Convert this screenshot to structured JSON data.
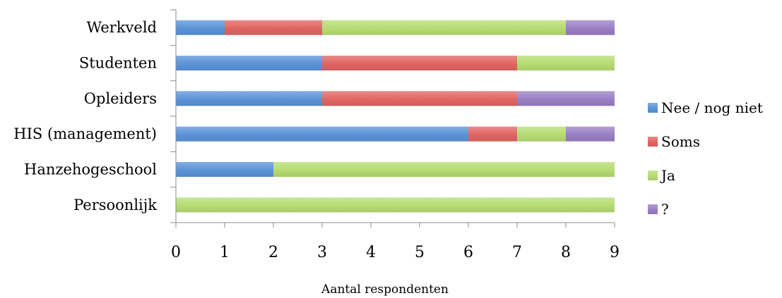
{
  "chart_data": {
    "type": "bar",
    "orientation": "horizontal",
    "stacked": true,
    "categories": [
      "Werkveld",
      "Studenten",
      "Opleiders",
      "HIS (management)",
      "Hanzehogeschool",
      "Persoonlijk"
    ],
    "series": [
      {
        "name": "Nee / nog niet",
        "color": "#5b93d8",
        "values": [
          1,
          3,
          3,
          6,
          2,
          0
        ]
      },
      {
        "name": "Soms",
        "color": "#e06563",
        "values": [
          2,
          4,
          4,
          1,
          0,
          0
        ]
      },
      {
        "name": "Ja",
        "color": "#b6dc72",
        "values": [
          5,
          2,
          0,
          1,
          7,
          9
        ]
      },
      {
        "name": "?",
        "color": "#9a7fc4",
        "values": [
          1,
          0,
          2,
          1,
          0,
          0
        ]
      }
    ],
    "x_ticks": [
      "0",
      "1",
      "2",
      "3",
      "4",
      "5",
      "6",
      "7",
      "8",
      "9"
    ],
    "xlabel": "Aantal respondenten",
    "xlim": [
      0,
      9
    ],
    "grid": false,
    "legend_position": "right"
  }
}
